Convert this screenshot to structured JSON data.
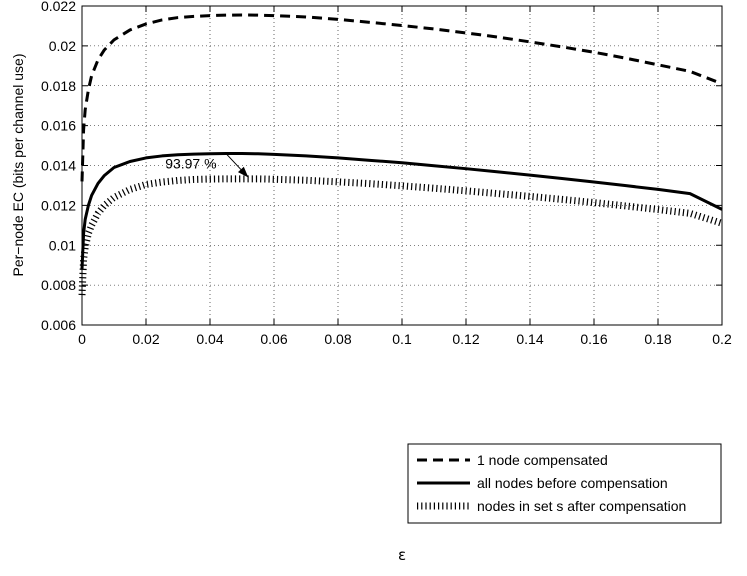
{
  "chart_data": {
    "type": "line",
    "title": "",
    "xlabel": "ε",
    "ylabel": "Per−node EC (bits per channel use)",
    "xlim": [
      0,
      0.2
    ],
    "ylim": [
      0.006,
      0.022
    ],
    "xticks": [
      0,
      0.02,
      0.04,
      0.06,
      0.08,
      0.1,
      0.12,
      0.14,
      0.16,
      0.18,
      0.2
    ],
    "yticks": [
      0.006,
      0.008,
      0.01,
      0.012,
      0.014,
      0.016,
      0.018,
      0.02,
      0.022
    ],
    "xtick_labels": [
      "0",
      "0.02",
      "0.04",
      "0.06",
      "0.08",
      "0.1",
      "0.12",
      "0.14",
      "0.16",
      "0.18",
      "0.2"
    ],
    "ytick_labels": [
      "0.006",
      "0.008",
      "0.01",
      "0.012",
      "0.014",
      "0.016",
      "0.018",
      "0.02",
      "0.022"
    ],
    "grid": true,
    "legend_position": "bottom-right",
    "series": [
      {
        "name": "1 node compensated",
        "style": "dashed",
        "x": [
          0,
          0.0005,
          0.001,
          0.002,
          0.003,
          0.005,
          0.007,
          0.01,
          0.015,
          0.02,
          0.025,
          0.03,
          0.035,
          0.04,
          0.045,
          0.05,
          0.055,
          0.06,
          0.07,
          0.08,
          0.09,
          0.1,
          0.11,
          0.12,
          0.13,
          0.14,
          0.15,
          0.16,
          0.17,
          0.18,
          0.19,
          0.2
        ],
        "y": [
          0.0132,
          0.0158,
          0.0168,
          0.0178,
          0.0185,
          0.0193,
          0.0198,
          0.0203,
          0.0208,
          0.0211,
          0.0213,
          0.02142,
          0.02148,
          0.02152,
          0.02154,
          0.02155,
          0.02154,
          0.02152,
          0.02145,
          0.02133,
          0.02118,
          0.02102,
          0.02085,
          0.02065,
          0.02044,
          0.0202,
          0.01995,
          0.01968,
          0.01938,
          0.01905,
          0.01872,
          0.0181
        ]
      },
      {
        "name": "all nodes before compensation",
        "style": "solid",
        "x": [
          0,
          0.0005,
          0.001,
          0.002,
          0.003,
          0.005,
          0.007,
          0.01,
          0.015,
          0.02,
          0.025,
          0.03,
          0.035,
          0.04,
          0.045,
          0.05,
          0.055,
          0.06,
          0.07,
          0.08,
          0.09,
          0.1,
          0.11,
          0.12,
          0.13,
          0.14,
          0.15,
          0.16,
          0.17,
          0.18,
          0.19,
          0.2
        ],
        "y": [
          0.0088,
          0.0106,
          0.0113,
          0.012,
          0.0125,
          0.0131,
          0.0135,
          0.0139,
          0.0142,
          0.01438,
          0.01448,
          0.01454,
          0.01457,
          0.01459,
          0.0146,
          0.0146,
          0.01459,
          0.01456,
          0.01448,
          0.01438,
          0.01426,
          0.01414,
          0.01399,
          0.01384,
          0.01368,
          0.01352,
          0.01335,
          0.01317,
          0.01299,
          0.0128,
          0.01259,
          0.0118
        ]
      },
      {
        "name": "nodes in set s after compensation",
        "style": "dotted",
        "x": [
          0,
          0.0005,
          0.001,
          0.002,
          0.003,
          0.005,
          0.007,
          0.01,
          0.015,
          0.02,
          0.025,
          0.03,
          0.035,
          0.04,
          0.045,
          0.05,
          0.055,
          0.06,
          0.07,
          0.08,
          0.09,
          0.1,
          0.11,
          0.12,
          0.13,
          0.14,
          0.15,
          0.16,
          0.17,
          0.18,
          0.19,
          0.2
        ],
        "y": [
          0.0075,
          0.0093,
          0.0099,
          0.0106,
          0.011,
          0.0116,
          0.012,
          0.0124,
          0.0128,
          0.01305,
          0.01317,
          0.01325,
          0.0133,
          0.01332,
          0.01333,
          0.01333,
          0.01333,
          0.01331,
          0.01326,
          0.01318,
          0.01309,
          0.01298,
          0.01286,
          0.01273,
          0.01259,
          0.01245,
          0.0123,
          0.01214,
          0.01197,
          0.01179,
          0.0116,
          0.0111
        ]
      }
    ],
    "annotations": [
      {
        "text": "93.97 %",
        "x": 0.026,
        "y": 0.01385,
        "arrow_from": [
          0.045,
          0.0146
        ],
        "arrow_to": [
          0.052,
          0.0134
        ]
      }
    ]
  }
}
